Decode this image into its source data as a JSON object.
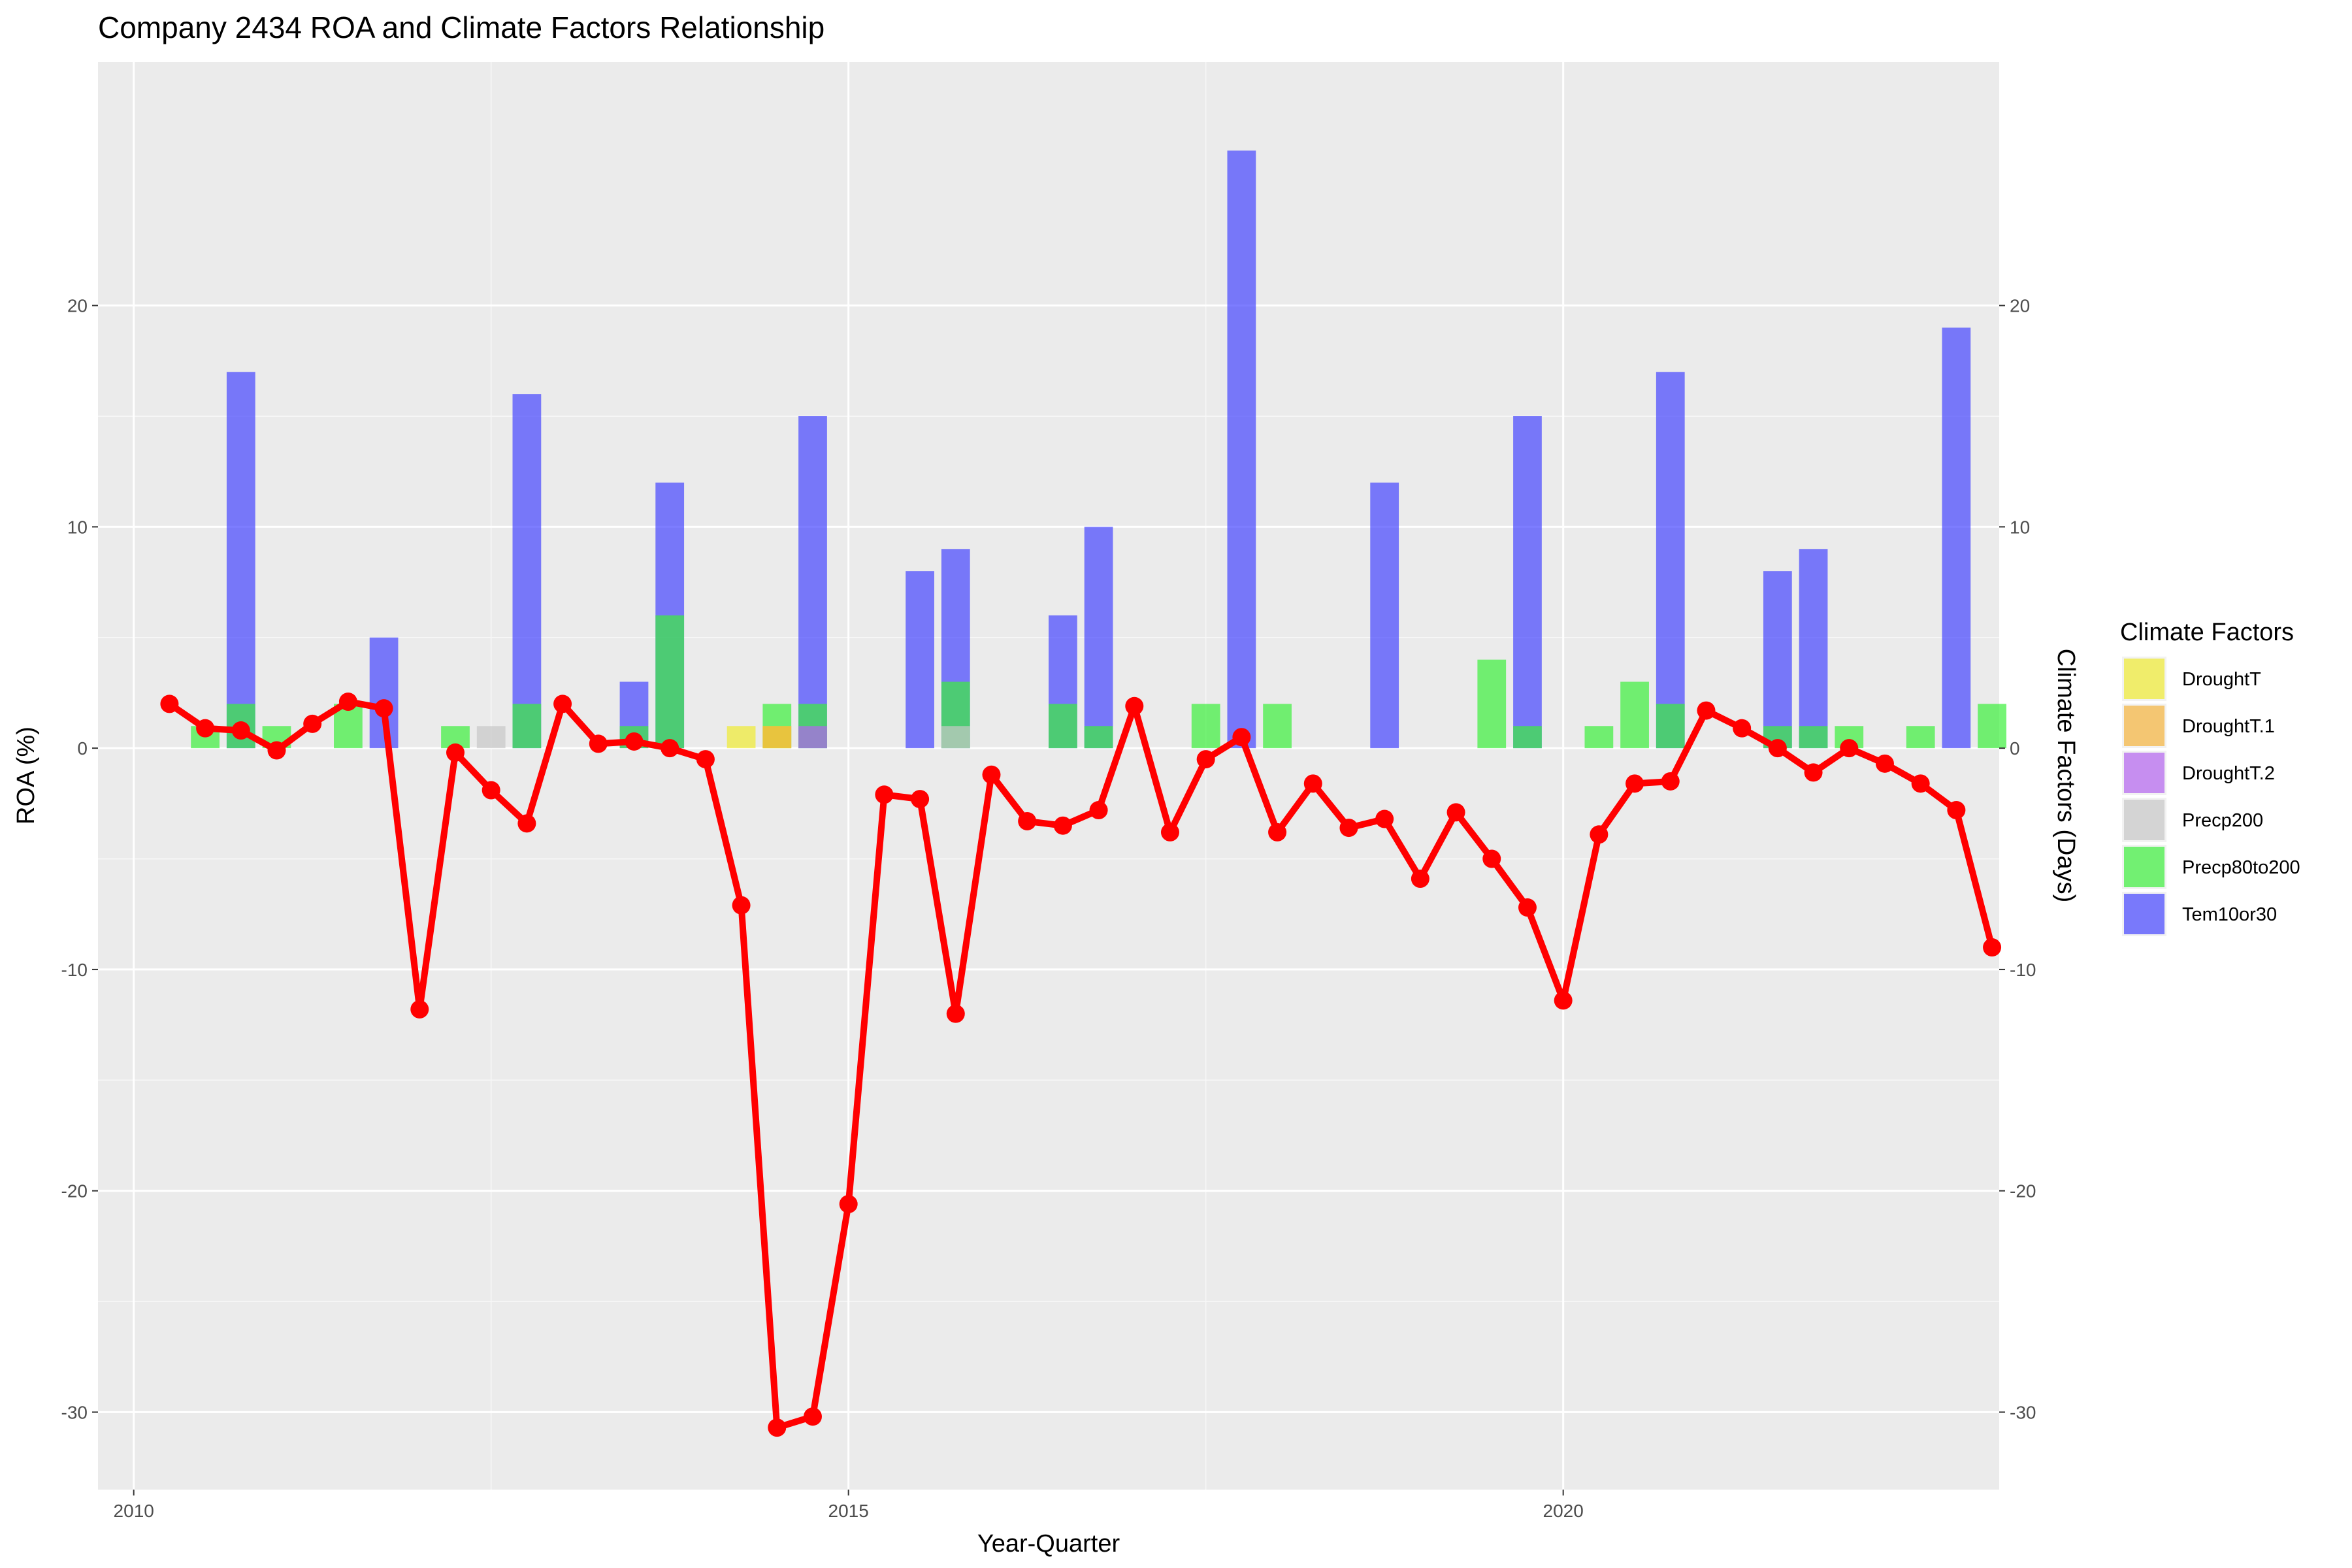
{
  "chart_data": {
    "type": "bar+line",
    "title": "Company 2434 ROA and Climate Factors Relationship",
    "xlabel": "Year-Quarter",
    "ylabel_left": "ROA (%)",
    "ylabel_right": "Climate Factors (Days)",
    "xlim": [
      2009.75,
      2023.05
    ],
    "ylim": [
      -33.5,
      31.0
    ],
    "x_ticks": [
      2010,
      2015,
      2020
    ],
    "y_ticks": [
      -30,
      -20,
      -10,
      0,
      10,
      20
    ],
    "grid": true,
    "legend": {
      "title": "Climate Factors",
      "placement": "right",
      "items": [
        {
          "name": "DroughtT",
          "color": "#F0EB32"
        },
        {
          "name": "DroughtT.1",
          "color": "#F5B43C"
        },
        {
          "name": "DroughtT.2",
          "color": "#B464F0"
        },
        {
          "name": "Precp200",
          "color": "#C8C8C8"
        },
        {
          "name": "Precp80to200",
          "color": "#3CF03C"
        },
        {
          "name": "Tem10or30",
          "color": "#4646FF"
        }
      ]
    },
    "bar_series": [
      {
        "name": "Tem10or30",
        "color": "#4646FF",
        "values": [
          [
            2010.75,
            17
          ],
          [
            2011.75,
            5
          ],
          [
            2012.75,
            16
          ],
          [
            2013.5,
            3
          ],
          [
            2013.75,
            12
          ],
          [
            2014.75,
            15
          ],
          [
            2015.5,
            8
          ],
          [
            2015.75,
            9
          ],
          [
            2016.5,
            6
          ],
          [
            2016.75,
            10
          ],
          [
            2017.75,
            27
          ],
          [
            2018.75,
            12
          ],
          [
            2019.75,
            15
          ],
          [
            2020.75,
            17
          ],
          [
            2021.5,
            8
          ],
          [
            2021.75,
            9
          ],
          [
            2022.75,
            19
          ]
        ]
      },
      {
        "name": "Precp80to200",
        "color": "#3CF03C",
        "values": [
          [
            2010.5,
            1
          ],
          [
            2010.75,
            2
          ],
          [
            2011.0,
            1
          ],
          [
            2011.5,
            2
          ],
          [
            2012.25,
            1
          ],
          [
            2012.75,
            2
          ],
          [
            2013.5,
            1
          ],
          [
            2013.75,
            6
          ],
          [
            2014.5,
            2
          ],
          [
            2014.75,
            2
          ],
          [
            2015.75,
            3
          ],
          [
            2016.5,
            2
          ],
          [
            2016.75,
            1
          ],
          [
            2017.5,
            2
          ],
          [
            2018.0,
            2
          ],
          [
            2019.5,
            4
          ],
          [
            2019.75,
            1
          ],
          [
            2020.25,
            1
          ],
          [
            2020.5,
            3
          ],
          [
            2020.75,
            2
          ],
          [
            2021.5,
            1
          ],
          [
            2021.75,
            1
          ],
          [
            2022.0,
            1
          ],
          [
            2022.5,
            1
          ],
          [
            2023.0,
            2
          ]
        ]
      },
      {
        "name": "Precp200",
        "color": "#C8C8C8",
        "values": [
          [
            2012.5,
            1
          ],
          [
            2015.75,
            1
          ]
        ]
      },
      {
        "name": "DroughtT",
        "color": "#F0EB32",
        "values": [
          [
            2014.25,
            1
          ],
          [
            2014.5,
            1
          ]
        ]
      },
      {
        "name": "DroughtT.1",
        "color": "#F5B43C",
        "values": [
          [
            2014.5,
            1
          ]
        ]
      },
      {
        "name": "DroughtT.2",
        "color": "#B464F0",
        "values": [
          [
            2014.75,
            1
          ]
        ]
      }
    ],
    "line_series": {
      "name": "ROA",
      "color": "#FF0000",
      "x": [
        2010.25,
        2010.5,
        2010.75,
        2011.0,
        2011.25,
        2011.5,
        2011.75,
        2012.0,
        2012.25,
        2012.5,
        2012.75,
        2013.0,
        2013.25,
        2013.5,
        2013.75,
        2014.0,
        2014.25,
        2014.5,
        2014.75,
        2015.0,
        2015.25,
        2015.5,
        2015.75,
        2016.0,
        2016.25,
        2016.5,
        2016.75,
        2017.0,
        2017.25,
        2017.5,
        2017.75,
        2018.0,
        2018.25,
        2018.5,
        2018.75,
        2019.0,
        2019.25,
        2019.5,
        2019.75,
        2020.0,
        2020.25,
        2020.5,
        2020.75,
        2021.0,
        2021.25,
        2021.5,
        2021.75,
        2022.0,
        2022.25,
        2022.5,
        2022.75,
        2023.0
      ],
      "y": [
        2.0,
        0.9,
        0.8,
        -0.1,
        1.1,
        2.1,
        1.8,
        -11.8,
        -0.2,
        -1.9,
        -3.4,
        2.0,
        0.2,
        0.3,
        0.0,
        -0.5,
        -7.1,
        -30.7,
        -30.2,
        -20.6,
        -2.1,
        -2.3,
        -12.0,
        -1.2,
        -3.3,
        -3.5,
        -2.8,
        1.9,
        -3.8,
        -0.5,
        0.5,
        -3.8,
        -1.6,
        -3.6,
        -3.2,
        -5.9,
        -2.9,
        -5.0,
        -7.2,
        -11.4,
        -3.9,
        -1.6,
        -1.5,
        1.7,
        0.9,
        0.0,
        -1.1,
        0.0,
        -0.7,
        -1.6,
        -2.8,
        -9.0
      ]
    }
  }
}
